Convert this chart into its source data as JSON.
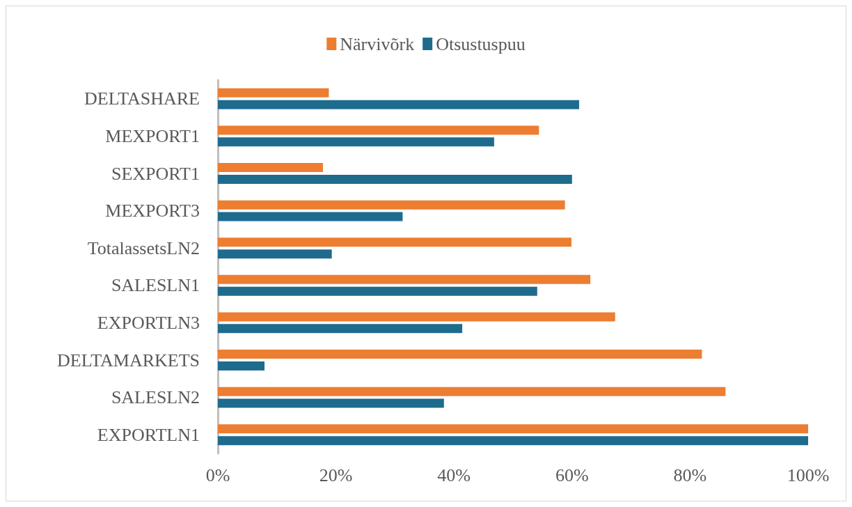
{
  "chart_data": {
    "type": "bar",
    "orientation": "horizontal",
    "categories": [
      "DELTASHARE",
      "MEXPORT1",
      "SEXPORT1",
      "MEXPORT3",
      "TotalassetsLN2",
      "SALESLN1",
      "EXPORTLN3",
      "DELTAMARKETS",
      "SALESLN2",
      "EXPORTLN1"
    ],
    "series": [
      {
        "name": "Närvivõrk",
        "color": "#ed7d31",
        "values": [
          18.8,
          54.4,
          17.8,
          58.8,
          59.9,
          63.1,
          67.3,
          82.0,
          86.0,
          100
        ]
      },
      {
        "name": "Otsustuspuu",
        "color": "#1f6b8e",
        "values": [
          61.2,
          46.8,
          60.0,
          31.3,
          19.3,
          54.1,
          41.4,
          7.9,
          38.3,
          100
        ]
      }
    ],
    "xlim": [
      0,
      100
    ],
    "xticks": [
      {
        "value": 0,
        "label": "0%"
      },
      {
        "value": 20,
        "label": "20%"
      },
      {
        "value": 40,
        "label": "40%"
      },
      {
        "value": 60,
        "label": "60%"
      },
      {
        "value": 80,
        "label": "80%"
      },
      {
        "value": 100,
        "label": "100%"
      }
    ],
    "grid": false,
    "legend": "top"
  }
}
